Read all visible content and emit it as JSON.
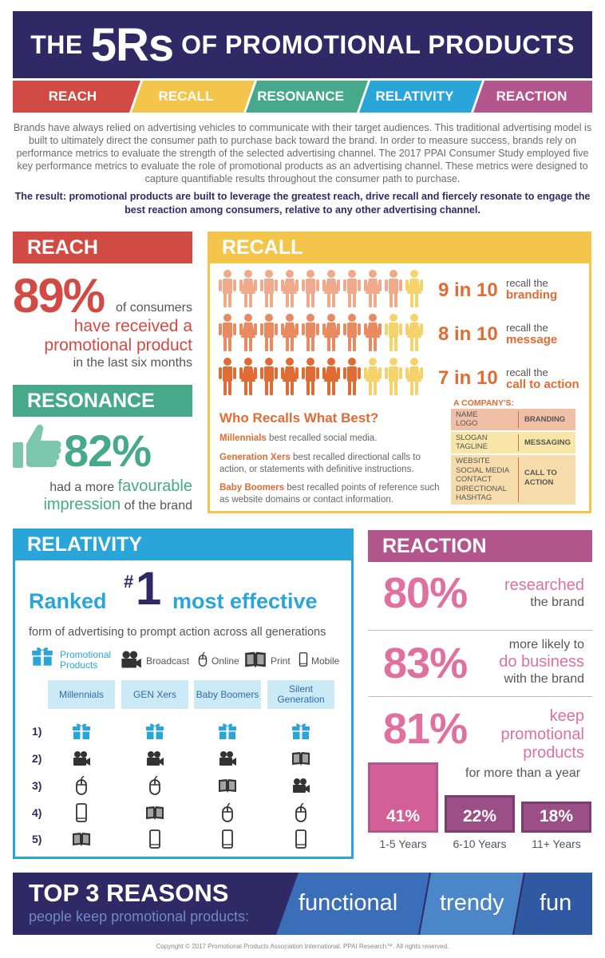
{
  "header": {
    "title_prefix": "THE",
    "title_5rs": "5Rs",
    "title_suffix": "OF PROMOTIONAL PRODUCTS"
  },
  "rbar": [
    "REACH",
    "RECALL",
    "RESONANCE",
    "RELATIVITY",
    "REACTION"
  ],
  "colors": {
    "reach": "#d24a44",
    "recall": "#f3c54a",
    "resonance": "#46a98a",
    "relativity": "#2aa5da",
    "reaction": "#b3568e",
    "navy": "#2f2a66",
    "orange": "#e06b33",
    "pink": "#e0709f"
  },
  "intro": "Brands have always relied on advertising vehicles to communicate with their target audiences. This traditional advertising model is built to ultimately direct the consumer path to purchase back toward the brand. In order to measure success, brands rely on performance metrics to evaluate the strength of the selected advertising channel. The 2017 PPAI Consumer Study employed five key performance metrics to evaluate the role of promotional products as an advertising channel. These metrics were designed to capture quantifiable results throughout the consumer path to purchase.",
  "result": "The result: promotional products are built to leverage the greatest reach, drive recall and fiercely resonate to engage the best reaction among consumers, relative to any other advertising channel.",
  "reach": {
    "heading": "REACH",
    "pct": "89%",
    "line1": "of consumers",
    "line2": "have received a",
    "line3": "promotional product",
    "line4": "in the last six months"
  },
  "resonance": {
    "heading": "RESONANCE",
    "icon": "thumbs-up-icon",
    "pct": "82%",
    "line1": "had a more",
    "line1b": "favourable",
    "line2": "impression",
    "line2b": "of the brand"
  },
  "recall": {
    "heading": "RECALL",
    "rows": [
      {
        "num": "9 in 10",
        "label": "recall the",
        "bold": "branding",
        "filled": 9
      },
      {
        "num": "8 in 10",
        "label": "recall the",
        "bold": "message",
        "filled": 8
      },
      {
        "num": "7 in 10",
        "label": "recall the",
        "bold": "call to action",
        "filled": 7
      }
    ],
    "who_title": "Who Recalls What Best?",
    "who": [
      {
        "gen": "Millennials",
        "text": "best recalled social media."
      },
      {
        "gen": "Generation Xers",
        "text": "best recalled directional calls to action, or statements with definitive instructions."
      },
      {
        "gen": "Baby Boomers",
        "text": "best recalled points of reference such as website domains or contact information."
      }
    ],
    "company_title": "A COMPANY'S:",
    "company": [
      {
        "items": [
          "NAME",
          "LOGO"
        ],
        "label": "BRANDING"
      },
      {
        "items": [
          "SLOGAN",
          "TAGLINE"
        ],
        "label": "MESSAGING"
      },
      {
        "items": [
          "WEBSITE",
          "SOCIAL MEDIA",
          "CONTACT",
          "DIRECTIONAL",
          "HASHTAG"
        ],
        "label": "CALL TO ACTION"
      }
    ]
  },
  "relativity": {
    "heading": "RELATIVITY",
    "ranked": "Ranked",
    "hash": "#",
    "one": "1",
    "most": "most effective",
    "sub": "form of advertising to prompt action across all generations",
    "legend": [
      {
        "icon": "gift-icon",
        "label": "Promotional Products"
      },
      {
        "icon": "video-camera-icon",
        "label": "Broadcast"
      },
      {
        "icon": "mouse-icon",
        "label": "Online"
      },
      {
        "icon": "book-icon",
        "label": "Print"
      },
      {
        "icon": "phone-icon",
        "label": "Mobile"
      }
    ],
    "columns": [
      "Millennials",
      "GEN Xers",
      "Baby Boomers",
      "Silent Generation"
    ],
    "rows": [
      {
        "num": "1)",
        "icons": [
          "gift",
          "gift",
          "gift",
          "gift"
        ]
      },
      {
        "num": "2)",
        "icons": [
          "camera",
          "camera",
          "camera",
          "book"
        ]
      },
      {
        "num": "3)",
        "icons": [
          "mouse",
          "mouse",
          "book",
          "camera"
        ]
      },
      {
        "num": "4)",
        "icons": [
          "phone",
          "book",
          "mouse",
          "mouse"
        ]
      },
      {
        "num": "5)",
        "icons": [
          "book",
          "phone",
          "phone",
          "phone"
        ]
      }
    ]
  },
  "reaction": {
    "heading": "REACTION",
    "items": [
      {
        "pct": "80%",
        "pink": "researched",
        "rest": "the brand"
      },
      {
        "pct": "83%",
        "pre": "more likely to",
        "pink": "do business",
        "rest": "with the brand"
      },
      {
        "pct": "81%",
        "pink1": "keep",
        "pink2": "promotional",
        "pink3": "products",
        "rest": "for more than a year"
      }
    ],
    "bars": [
      {
        "value": 41,
        "label": "41%",
        "range": "1-5 Years"
      },
      {
        "value": 22,
        "label": "22%",
        "range": "6-10 Years"
      },
      {
        "value": 18,
        "label": "18%",
        "range": "11+ Years"
      }
    ]
  },
  "top3": {
    "title": "TOP 3 REASONS",
    "sub": "people keep promotional products:",
    "reasons": [
      "functional",
      "trendy",
      "fun"
    ]
  },
  "copyright": "Copyright © 2017 Promotional Products Association International. PPAI Research™. All rights reserved."
}
